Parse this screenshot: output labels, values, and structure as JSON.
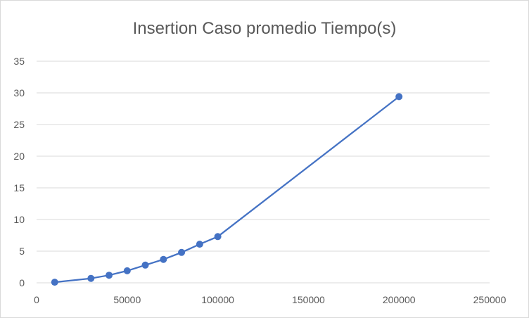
{
  "chart_data": {
    "type": "line",
    "title": "Insertion Caso promedio Tiempo(s)",
    "xlabel": "",
    "ylabel": "",
    "xlim": [
      0,
      250000
    ],
    "ylim": [
      0,
      35
    ],
    "x_ticks": [
      0,
      50000,
      100000,
      150000,
      200000,
      250000
    ],
    "y_ticks": [
      0,
      5,
      10,
      15,
      20,
      25,
      30,
      35
    ],
    "grid": true,
    "legend": "none",
    "series": [
      {
        "color": "#4472c4",
        "points": [
          {
            "x": 10000,
            "y": 0.1
          },
          {
            "x": 30000,
            "y": 0.7
          },
          {
            "x": 40000,
            "y": 1.2
          },
          {
            "x": 50000,
            "y": 1.9
          },
          {
            "x": 60000,
            "y": 2.8
          },
          {
            "x": 70000,
            "y": 3.7
          },
          {
            "x": 80000,
            "y": 4.8
          },
          {
            "x": 90000,
            "y": 6.1
          },
          {
            "x": 100000,
            "y": 7.3
          },
          {
            "x": 200000,
            "y": 29.4
          }
        ]
      }
    ]
  }
}
